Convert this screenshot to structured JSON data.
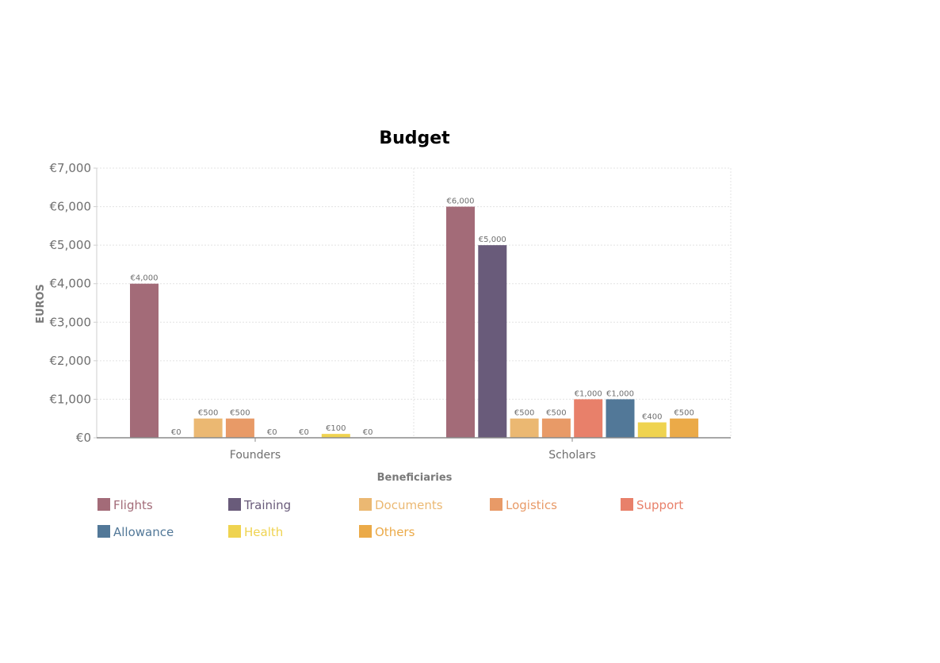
{
  "chart_data": {
    "type": "bar",
    "title": "Budget",
    "xlabel": "Beneficiaries",
    "ylabel": "EUROS",
    "categories": [
      "Founders",
      "Scholars"
    ],
    "ylim": [
      0,
      7000
    ],
    "yticks": [
      0,
      1000,
      2000,
      3000,
      4000,
      5000,
      6000,
      7000
    ],
    "ytick_labels": [
      "€0",
      "€1,000",
      "€2,000",
      "€3,000",
      "€4,000",
      "€5,000",
      "€6,000",
      "€7,000"
    ],
    "grid": true,
    "legend_position": "bottom",
    "series": [
      {
        "name": "Flights",
        "color": "#a36b78",
        "values": [
          4000,
          6000
        ],
        "labels": [
          "€4,000",
          "€6,000"
        ]
      },
      {
        "name": "Training",
        "color": "#695b7a",
        "values": [
          0,
          5000
        ],
        "labels": [
          "€0",
          "€5,000"
        ]
      },
      {
        "name": "Documents",
        "color": "#ebb872",
        "values": [
          500,
          500
        ],
        "labels": [
          "€500",
          "€500"
        ]
      },
      {
        "name": "Logistics",
        "color": "#e89a67",
        "values": [
          500,
          500
        ],
        "labels": [
          "€500",
          "€500"
        ]
      },
      {
        "name": "Support",
        "color": "#e8806a",
        "values": [
          0,
          1000
        ],
        "labels": [
          "€0",
          "€1,000"
        ]
      },
      {
        "name": "Allowance",
        "color": "#527898",
        "values": [
          0,
          1000
        ],
        "labels": [
          "€0",
          "€1,000"
        ]
      },
      {
        "name": "Health",
        "color": "#efd350",
        "values": [
          100,
          400
        ],
        "labels": [
          "€100",
          "€400"
        ]
      },
      {
        "name": "Others",
        "color": "#ebaa48",
        "values": [
          0,
          500
        ],
        "labels": [
          "€0",
          "€500"
        ]
      }
    ]
  }
}
